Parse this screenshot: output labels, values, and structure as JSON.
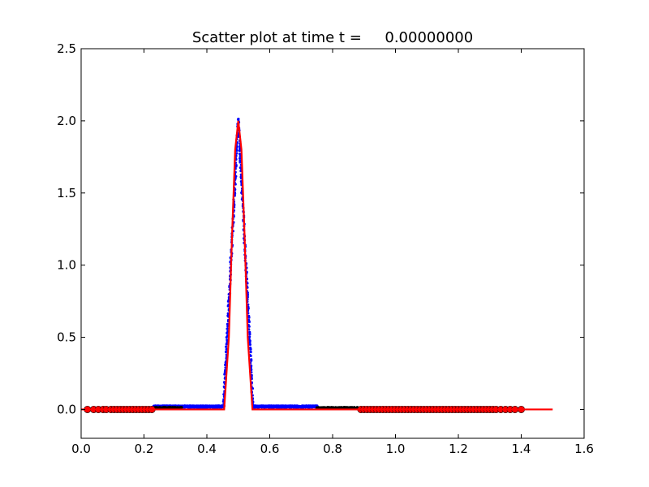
{
  "chart_data": {
    "type": "scatter",
    "title": "Scatter plot at time t =     0.00000000",
    "xlabel": "",
    "ylabel": "",
    "xlim": [
      0.0,
      1.6
    ],
    "ylim": [
      -0.2,
      2.5
    ],
    "xticks": [
      0.0,
      0.2,
      0.4,
      0.6,
      0.8,
      1.0,
      1.2,
      1.4,
      1.6
    ],
    "xtick_labels": [
      "0.0",
      "0.2",
      "0.4",
      "0.6",
      "0.8",
      "1.0",
      "1.2",
      "1.4",
      "1.6"
    ],
    "yticks": [
      0.0,
      0.5,
      1.0,
      1.5,
      2.0,
      2.5
    ],
    "ytick_labels": [
      "0.0",
      "0.5",
      "1.0",
      "1.5",
      "2.0",
      "2.5"
    ],
    "grid": false,
    "legend": null,
    "series": [
      {
        "kind": "dense-scatter",
        "color": "#0000ff",
        "x_range": [
          0.23,
          0.75
        ],
        "baseline_y": 0.02,
        "peak_center_x": 0.5,
        "peak_y": 2.0,
        "peak_halfwidth": 0.047
      },
      {
        "kind": "dense-scatter",
        "color": "#000000",
        "segments": [
          [
            0.23,
            0.32
          ],
          [
            0.75,
            0.88
          ]
        ],
        "y": 0.01
      },
      {
        "kind": "scatter-circles",
        "color": "#ff0000",
        "y": 0.0,
        "x": [
          0.02,
          0.04,
          0.055,
          0.07,
          0.08,
          0.095,
          0.105,
          0.115,
          0.125,
          0.135,
          0.145,
          0.155,
          0.165,
          0.175,
          0.185,
          0.195,
          0.205,
          0.215,
          0.225,
          0.89,
          0.9,
          0.91,
          0.92,
          0.93,
          0.94,
          0.95,
          0.96,
          0.97,
          0.98,
          0.99,
          1.0,
          1.01,
          1.02,
          1.03,
          1.04,
          1.05,
          1.06,
          1.07,
          1.08,
          1.09,
          1.1,
          1.11,
          1.12,
          1.13,
          1.14,
          1.15,
          1.16,
          1.17,
          1.18,
          1.19,
          1.2,
          1.21,
          1.22,
          1.23,
          1.24,
          1.25,
          1.26,
          1.27,
          1.28,
          1.29,
          1.3,
          1.31,
          1.32,
          1.335,
          1.35,
          1.365,
          1.38,
          1.4
        ]
      },
      {
        "kind": "line",
        "color": "#ff0000",
        "x": [
          0.0,
          0.44,
          0.455,
          0.47,
          0.48,
          0.49,
          0.5,
          0.51,
          0.52,
          0.53,
          0.545,
          0.56,
          1.5
        ],
        "y": [
          0.0,
          0.0,
          0.0,
          0.5,
          1.2,
          1.8,
          2.0,
          1.8,
          1.2,
          0.5,
          0.0,
          0.0,
          0.0
        ]
      }
    ]
  }
}
